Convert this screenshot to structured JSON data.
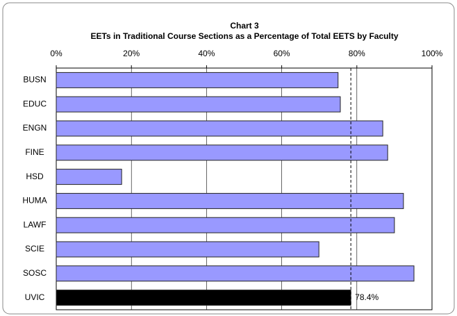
{
  "chart_data": {
    "type": "hbar",
    "title": "Chart 3",
    "subtitle": "EETs in Traditional Course Sections as a Percentage of Total EETS by Faculty",
    "categories": [
      "BUSN",
      "EDUC",
      "ENGN",
      "FINE",
      "HSD",
      "HUMA",
      "LAWF",
      "SCIE",
      "SOSC",
      "UVIC"
    ],
    "values": [
      75.0,
      75.6,
      86.9,
      88.2,
      17.4,
      92.4,
      90.0,
      69.9,
      95.2,
      78.4
    ],
    "value_labels": [
      null,
      null,
      null,
      null,
      null,
      null,
      null,
      null,
      null,
      "78.4%"
    ],
    "colors": [
      "#9999ff",
      "#9999ff",
      "#9999ff",
      "#9999ff",
      "#9999ff",
      "#9999ff",
      "#9999ff",
      "#9999ff",
      "#9999ff",
      "#000000"
    ],
    "xlim": [
      0,
      100
    ],
    "xticks": [
      {
        "value": 0,
        "label": "0%"
      },
      {
        "value": 20,
        "label": "20%"
      },
      {
        "value": 40,
        "label": "40%"
      },
      {
        "value": 60,
        "label": "60%"
      },
      {
        "value": 80,
        "label": "80%"
      },
      {
        "value": 100,
        "label": "100%"
      }
    ],
    "grid": true
  }
}
